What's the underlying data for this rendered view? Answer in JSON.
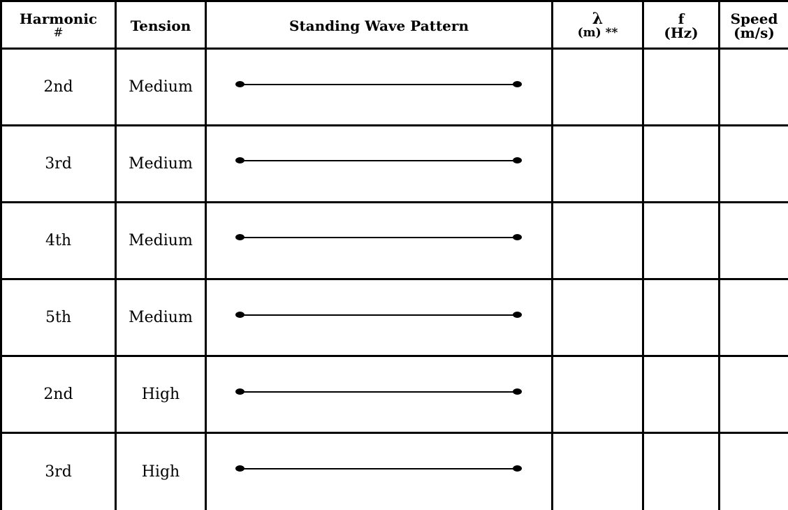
{
  "table": {
    "headers": {
      "harmonic": "Harmonic",
      "harmonic_sub": "#",
      "tension": "Tension",
      "pattern": "Standing Wave Pattern",
      "lambda": "λ",
      "lambda_sub": "(m) **",
      "freq": "f",
      "freq_sub": "(Hz)",
      "speed": "Speed",
      "speed_sub": "(m/s)"
    },
    "rows": [
      {
        "harmonic": "2nd",
        "tension": "Medium"
      },
      {
        "harmonic": "3rd",
        "tension": "Medium"
      },
      {
        "harmonic": "4th",
        "tension": "Medium"
      },
      {
        "harmonic": "5th",
        "tension": "Medium"
      },
      {
        "harmonic": "2nd",
        "tension": "High"
      },
      {
        "harmonic": "3rd",
        "tension": "High"
      }
    ]
  }
}
